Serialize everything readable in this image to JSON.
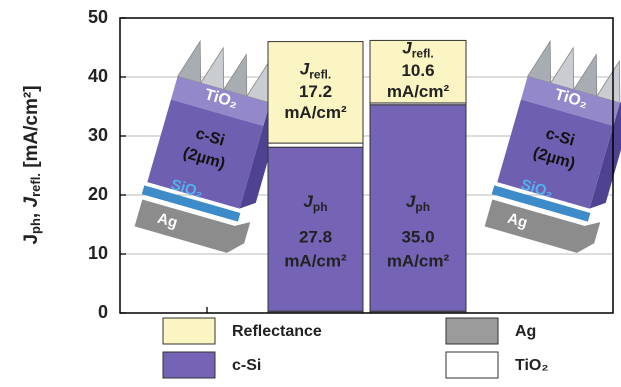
{
  "chart_data": {
    "type": "stacked-bar",
    "y_label": [
      {
        "text": "J",
        "style": "main"
      },
      {
        "text": "ph",
        "style": "sub"
      },
      {
        "text": ", ",
        "style": "main"
      },
      {
        "text": "J",
        "style": "italic"
      },
      {
        "text": "refl.",
        "style": "sub"
      },
      {
        "text": " [mA/cm²]",
        "style": "main"
      }
    ],
    "categories": [
      null,
      null
    ],
    "series": [
      {
        "name": "Reflectance",
        "color": "#fbf5c4",
        "values": [
          17.2,
          10.6
        ],
        "value_labels": [
          "17.2",
          "10.6"
        ],
        "label": [
          "J",
          "refl."
        ]
      },
      {
        "name": "Ag",
        "color": "#9b9b9b",
        "values": [
          0.3,
          0.3
        ]
      },
      {
        "name": "c-Si",
        "color": "#7563b5",
        "values": [
          27.8,
          35.0
        ],
        "value_labels": [
          "27.8",
          "35.0"
        ],
        "label": [
          "J",
          "ph"
        ]
      },
      {
        "name": "TiO₂",
        "color": "#ffffff",
        "values": [
          0.7,
          0.3
        ]
      }
    ],
    "unit": "mA/cm²",
    "ylim": [
      0,
      50
    ],
    "yticks": [
      0,
      10,
      20,
      30,
      40,
      50
    ],
    "grid": true,
    "illustration": {
      "labels": [
        "TiO₂",
        "c-Si",
        "(2µm)",
        "SiO₂",
        "Ag"
      ]
    }
  }
}
